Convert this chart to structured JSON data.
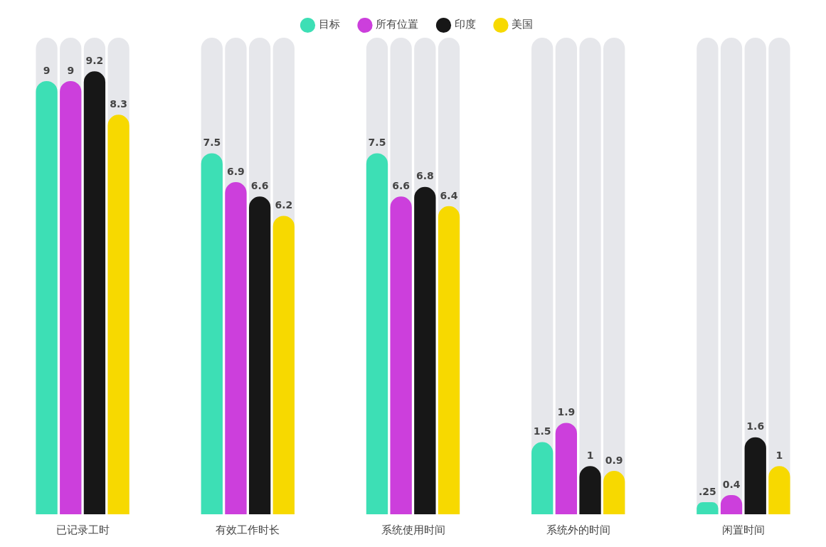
{
  "chart_data": {
    "type": "bar",
    "categories": [
      "已记录工时",
      "有效工作时长",
      "系统使用时间",
      "系统外的时间",
      "闲置时间"
    ],
    "series": [
      {
        "name": "目标",
        "color": "#3ddfb5",
        "values": [
          9,
          7.5,
          7.5,
          1.5,
          0.25
        ],
        "value_labels": [
          "9",
          "7.5",
          "7.5",
          "1.5",
          ".25"
        ]
      },
      {
        "name": "所有位置",
        "color": "#cc3fdc",
        "values": [
          9,
          6.9,
          6.6,
          1.9,
          0.4
        ],
        "value_labels": [
          "9",
          "6.9",
          "6.6",
          "1.9",
          "0.4"
        ]
      },
      {
        "name": "印度",
        "color": "#171717",
        "values": [
          9.2,
          6.6,
          6.8,
          1,
          1.6
        ],
        "value_labels": [
          "9.2",
          "6.6",
          "6.8",
          "1",
          "1.6"
        ]
      },
      {
        "name": "美国",
        "color": "#f7d900",
        "values": [
          8.3,
          6.2,
          6.4,
          0.9,
          1
        ],
        "value_labels": [
          "8.3",
          "6.2",
          "6.4",
          "0.9",
          "1"
        ]
      }
    ],
    "ylim": [
      0,
      9.9
    ],
    "tick_labels": "x",
    "grid": false,
    "legend": "top"
  }
}
